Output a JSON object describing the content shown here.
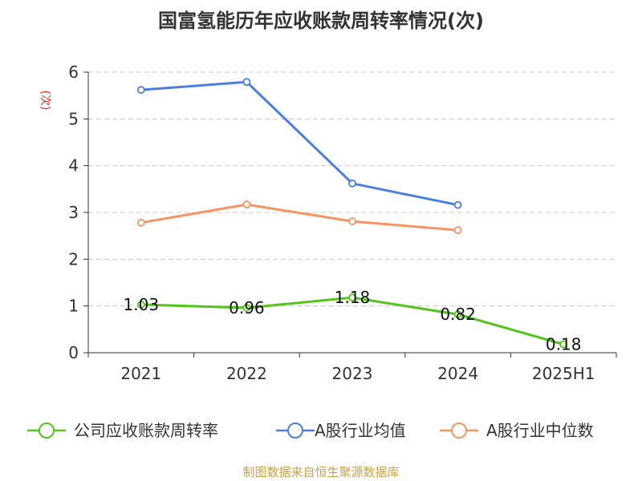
{
  "chart_data": {
    "type": "line",
    "title": "国富氢能历年应收账款周转率情况(次)",
    "ylabel": "(次)",
    "xlabel": "",
    "ylim": [
      0,
      6
    ],
    "yticks": [
      0,
      1,
      2,
      3,
      4,
      5,
      6
    ],
    "categories": [
      "2021",
      "2022",
      "2023",
      "2024",
      "2025H1"
    ],
    "grid": true,
    "legend_position": "bottom",
    "series": [
      {
        "name": "公司应收账款周转率",
        "color": "#52c41a",
        "values": [
          1.03,
          0.96,
          1.18,
          0.82,
          0.18
        ],
        "labels": [
          "1.03",
          "0.96",
          "1.18",
          "0.82",
          "0.18"
        ]
      },
      {
        "name": "A股行业均值",
        "color": "#4a7fe0",
        "values": [
          5.62,
          5.79,
          3.62,
          3.16,
          null
        ]
      },
      {
        "name": "A股行业中位数",
        "color": "#f79460",
        "values": [
          2.78,
          3.17,
          2.81,
          2.62,
          null
        ]
      }
    ],
    "source": "制图数据来自恒生聚源数据库"
  }
}
